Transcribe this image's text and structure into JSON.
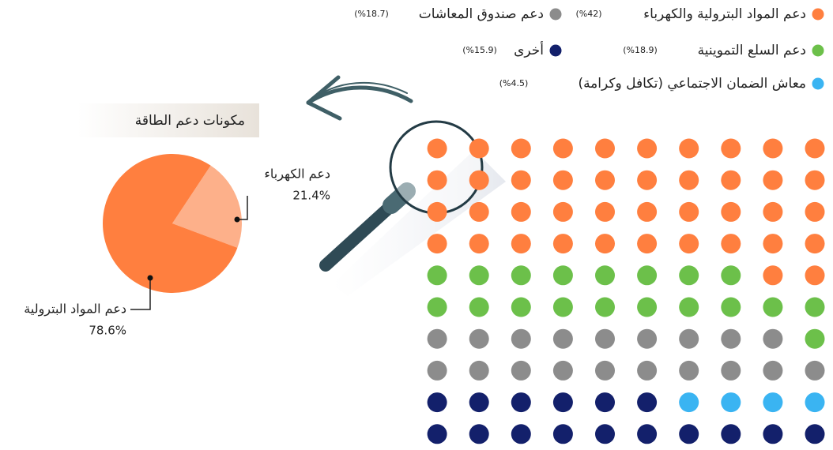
{
  "chart_data": [
    {
      "type": "waffle",
      "series": [
        {
          "name": "دعم المواد البترولية والكهرباء",
          "color": "#ff7f3f",
          "values": [
            42
          ],
          "value_labels": [
            "(%42)"
          ]
        },
        {
          "name": "دعم السلع التموينية",
          "color": "#6cc04a",
          "values": [
            18.9
          ],
          "value_labels": [
            "(%18.9)"
          ]
        },
        {
          "name": "دعم صندوق المعاشات",
          "color": "#8c8c8c",
          "values": [
            18.7
          ],
          "value_labels": [
            "(%18.7)"
          ]
        },
        {
          "name": "معاش الضمان الاجتماعي (تكافل وكرامة)",
          "color": "#3ab4f2",
          "values": [
            4.5
          ],
          "value_labels": [
            "(%4.5)"
          ]
        },
        {
          "name": "أخرى",
          "color": "#13206b",
          "values": [
            15.9
          ],
          "value_labels": [
            "(%15.9)"
          ]
        }
      ]
    },
    {
      "type": "pie",
      "title": "مكونات دعم الطاقة",
      "categories": [
        "دعم الكهرباء",
        "دعم المواد البترولية"
      ],
      "values": [
        21.4,
        78.6
      ],
      "value_labels": [
        "21.4%",
        "78.6%"
      ],
      "colors": [
        "#fdb08a",
        "#ff7f3f"
      ]
    }
  ]
}
